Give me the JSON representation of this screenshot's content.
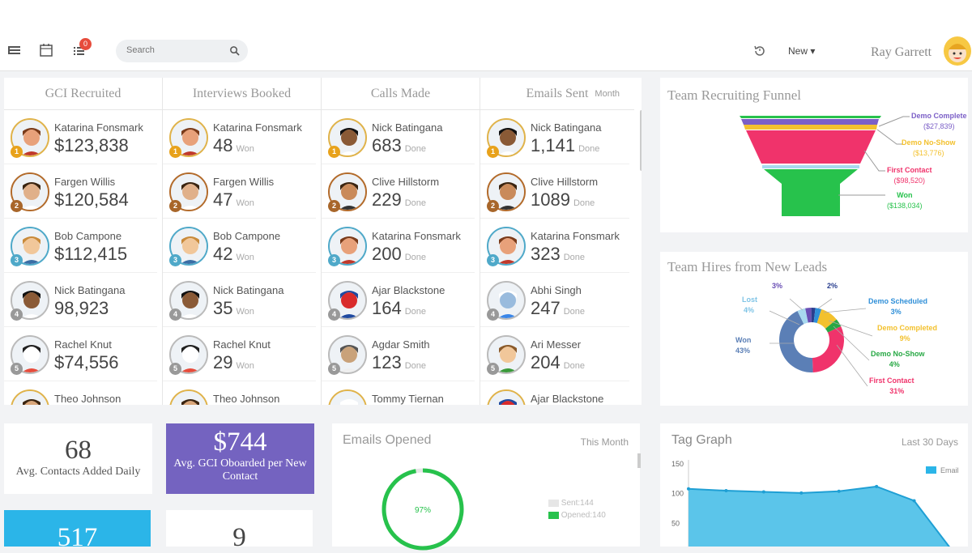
{
  "toolbar": {
    "badge_count": "0",
    "search_placeholder": "Search",
    "new_label": "New",
    "user_name": "Ray Garrett"
  },
  "leaderboard": {
    "period": "Month",
    "columns": [
      {
        "title": "GCI Recruited",
        "entries": [
          {
            "rank": "1",
            "name": "Katarina Fonsmark",
            "value": "$123,838",
            "unit": ""
          },
          {
            "rank": "2",
            "name": "Fargen Willis",
            "value": "$120,584",
            "unit": ""
          },
          {
            "rank": "3",
            "name": "Bob Campone",
            "value": "$112,415",
            "unit": ""
          },
          {
            "rank": "4",
            "name": "Nick Batingana",
            "value": "98,923",
            "unit": ""
          },
          {
            "rank": "5",
            "name": "Rachel Knut",
            "value": "$74,556",
            "unit": ""
          },
          {
            "rank": "",
            "name": "Theo Johnson",
            "value": "",
            "unit": ""
          }
        ]
      },
      {
        "title": "Interviews Booked",
        "entries": [
          {
            "rank": "1",
            "name": "Katarina Fonsmark",
            "value": "48",
            "unit": "Won"
          },
          {
            "rank": "2",
            "name": "Fargen Willis",
            "value": "47",
            "unit": "Won"
          },
          {
            "rank": "3",
            "name": "Bob Campone",
            "value": "42",
            "unit": "Won"
          },
          {
            "rank": "4",
            "name": "Nick Batingana",
            "value": "35",
            "unit": "Won"
          },
          {
            "rank": "5",
            "name": "Rachel Knut",
            "value": "29",
            "unit": "Won"
          },
          {
            "rank": "",
            "name": "Theo Johnson",
            "value": "",
            "unit": ""
          }
        ]
      },
      {
        "title": "Calls Made",
        "entries": [
          {
            "rank": "1",
            "name": "Nick Batingana",
            "value": "683",
            "unit": "Done"
          },
          {
            "rank": "2",
            "name": "Clive Hillstorm",
            "value": "229",
            "unit": "Done"
          },
          {
            "rank": "3",
            "name": "Katarina Fonsmark",
            "value": "200",
            "unit": "Done"
          },
          {
            "rank": "4",
            "name": "Ajar Blackstone",
            "value": "164",
            "unit": "Done"
          },
          {
            "rank": "5",
            "name": "Agdar Smith",
            "value": "123",
            "unit": "Done"
          },
          {
            "rank": "",
            "name": "Tommy Tiernan",
            "value": "",
            "unit": ""
          }
        ]
      },
      {
        "title": "Emails Sent",
        "entries": [
          {
            "rank": "1",
            "name": "Nick Batingana",
            "value": "1,141",
            "unit": "Done"
          },
          {
            "rank": "2",
            "name": "Clive Hillstorm",
            "value": "1089",
            "unit": "Done"
          },
          {
            "rank": "3",
            "name": "Katarina Fonsmark",
            "value": "323",
            "unit": "Done"
          },
          {
            "rank": "4",
            "name": "Abhi Singh",
            "value": "247",
            "unit": "Done"
          },
          {
            "rank": "5",
            "name": "Ari Messer",
            "value": "204",
            "unit": "Done"
          },
          {
            "rank": "",
            "name": "Ajar Blackstone",
            "value": "",
            "unit": ""
          }
        ]
      }
    ]
  },
  "funnel": {
    "title": "Team Recruiting Funnel",
    "stages": [
      {
        "name": "Demo Complete",
        "value": "($27,839)",
        "color": "#7b5fc7"
      },
      {
        "name": "Demo No-Show",
        "value": "($13,776)",
        "color": "#f3c12e"
      },
      {
        "name": "First Contact",
        "value": "($98,520)",
        "color": "#f0336b"
      },
      {
        "name": "Won",
        "value": "($138,034)",
        "color": "#27c24c"
      }
    ]
  },
  "hires": {
    "title": "Team Hires from New Leads",
    "slices": [
      {
        "name": "Won",
        "pct": "43%",
        "value": 43,
        "color": "#5b7fb6"
      },
      {
        "name": "Lost",
        "pct": "4%",
        "value": 4,
        "color": "#a8d8ef"
      },
      {
        "name": "",
        "pct": "3%",
        "value": 3,
        "color": "#6a4fb5"
      },
      {
        "name": "",
        "pct": "2%",
        "value": 2,
        "color": "#2a3f8f"
      },
      {
        "name": "Demo Scheduled",
        "pct": "3%",
        "value": 3,
        "color": "#2f8fd8"
      },
      {
        "name": "Demo Completed",
        "pct": "9%",
        "value": 9,
        "color": "#f3c12e"
      },
      {
        "name": "Demo No-Show",
        "pct": "4%",
        "value": 4,
        "color": "#27a844"
      },
      {
        "name": "First Contact",
        "pct": "31%",
        "value": 31,
        "color": "#f0336b"
      }
    ]
  },
  "stats": {
    "contacts": {
      "value": "68",
      "label": "Avg. Contacts Added Daily"
    },
    "gci": {
      "value": "$744",
      "label": "Avg. GCI Oboarded per New Contact"
    },
    "blue": {
      "value": "517"
    },
    "white": {
      "value": "9"
    }
  },
  "emails_opened": {
    "title": "Emails Opened",
    "period": "This Month",
    "pct_label": "97%",
    "pct": 97,
    "sent_label": "Sent:144",
    "opened_label": "Opened:140"
  },
  "tag_graph": {
    "title": "Tag Graph",
    "period": "Last 30 Days",
    "legend": "Email",
    "y_ticks": [
      "150",
      "100",
      "50"
    ]
  },
  "chart_data": [
    {
      "type": "area",
      "title": "Tag Graph",
      "series": [
        {
          "name": "Email",
          "values": [
            108,
            105,
            103,
            101,
            104,
            112,
            88,
            5
          ]
        }
      ],
      "ylim": [
        0,
        150
      ]
    }
  ]
}
